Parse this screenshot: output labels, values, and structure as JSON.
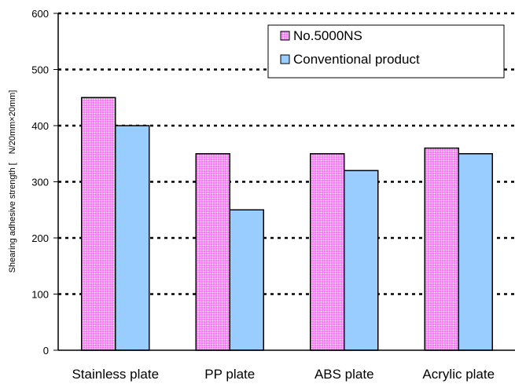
{
  "chart_data": {
    "type": "bar",
    "categories": [
      "Stainless plate",
      "PP plate",
      "ABS plate",
      "Acrylic plate"
    ],
    "series": [
      {
        "name": "No.5000NS",
        "values": [
          450,
          350,
          350,
          360
        ],
        "color": "#ff99ff",
        "pattern": "dotted"
      },
      {
        "name": "Conventional product",
        "values": [
          400,
          250,
          320,
          350
        ],
        "color": "#99ccff",
        "pattern": "solid"
      }
    ],
    "title": "",
    "xlabel": "",
    "ylabel": "Shearing adhesive strength [　N/20mm×20mm]",
    "ylim": [
      0,
      600
    ],
    "yticks": [
      0,
      100,
      200,
      300,
      400,
      500,
      600
    ],
    "grid": "horizontal dotted",
    "legend_position": "top-right"
  }
}
